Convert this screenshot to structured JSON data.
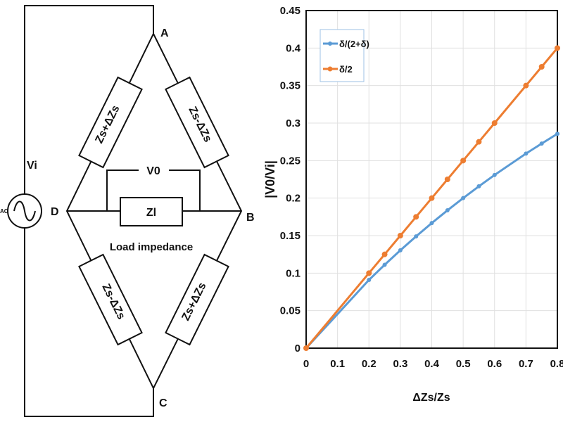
{
  "diagram": {
    "nodes": {
      "a": "A",
      "b": "B",
      "c": "C",
      "d": "D"
    },
    "source_label": "Vi",
    "source_type": "AC",
    "arm_ad": "Zs+ΔZs",
    "arm_ab": "Zs-ΔZs",
    "arm_dc": "Zs-ΔZs",
    "arm_bc": "Zs+ΔZs",
    "output_label": "V0",
    "load_label": "Zl",
    "load_caption": "Load impedance"
  },
  "chart_data": {
    "type": "line",
    "title": "",
    "xlabel": "ΔZs/Zs",
    "ylabel": "|V0/Vi|",
    "xlim": [
      0,
      0.8
    ],
    "ylim": [
      0,
      0.45
    ],
    "xticks": [
      "0",
      "0.1",
      "0.2",
      "0.3",
      "0.4",
      "0.5",
      "0.6",
      "0.7",
      "0.8"
    ],
    "yticks": [
      "0",
      "0.05",
      "0.1",
      "0.15",
      "0.2",
      "0.25",
      "0.3",
      "0.35",
      "0.4",
      "0.45"
    ],
    "grid": true,
    "legend_placement": "top-left",
    "x": [
      0,
      0.2,
      0.25,
      0.3,
      0.35,
      0.4,
      0.45,
      0.5,
      0.55,
      0.6,
      0.7,
      0.75,
      0.8
    ],
    "series": [
      {
        "name": "δ/(2+δ)",
        "color": "#5b9bd5",
        "values": [
          0,
          0.0909,
          0.1111,
          0.1304,
          0.1489,
          0.1667,
          0.1837,
          0.2,
          0.2157,
          0.2308,
          0.2593,
          0.2727,
          0.2857
        ]
      },
      {
        "name": "δ/2",
        "color": "#ed7d31",
        "values": [
          0,
          0.1,
          0.125,
          0.15,
          0.175,
          0.2,
          0.225,
          0.25,
          0.275,
          0.3,
          0.35,
          0.375,
          0.4
        ]
      }
    ]
  }
}
